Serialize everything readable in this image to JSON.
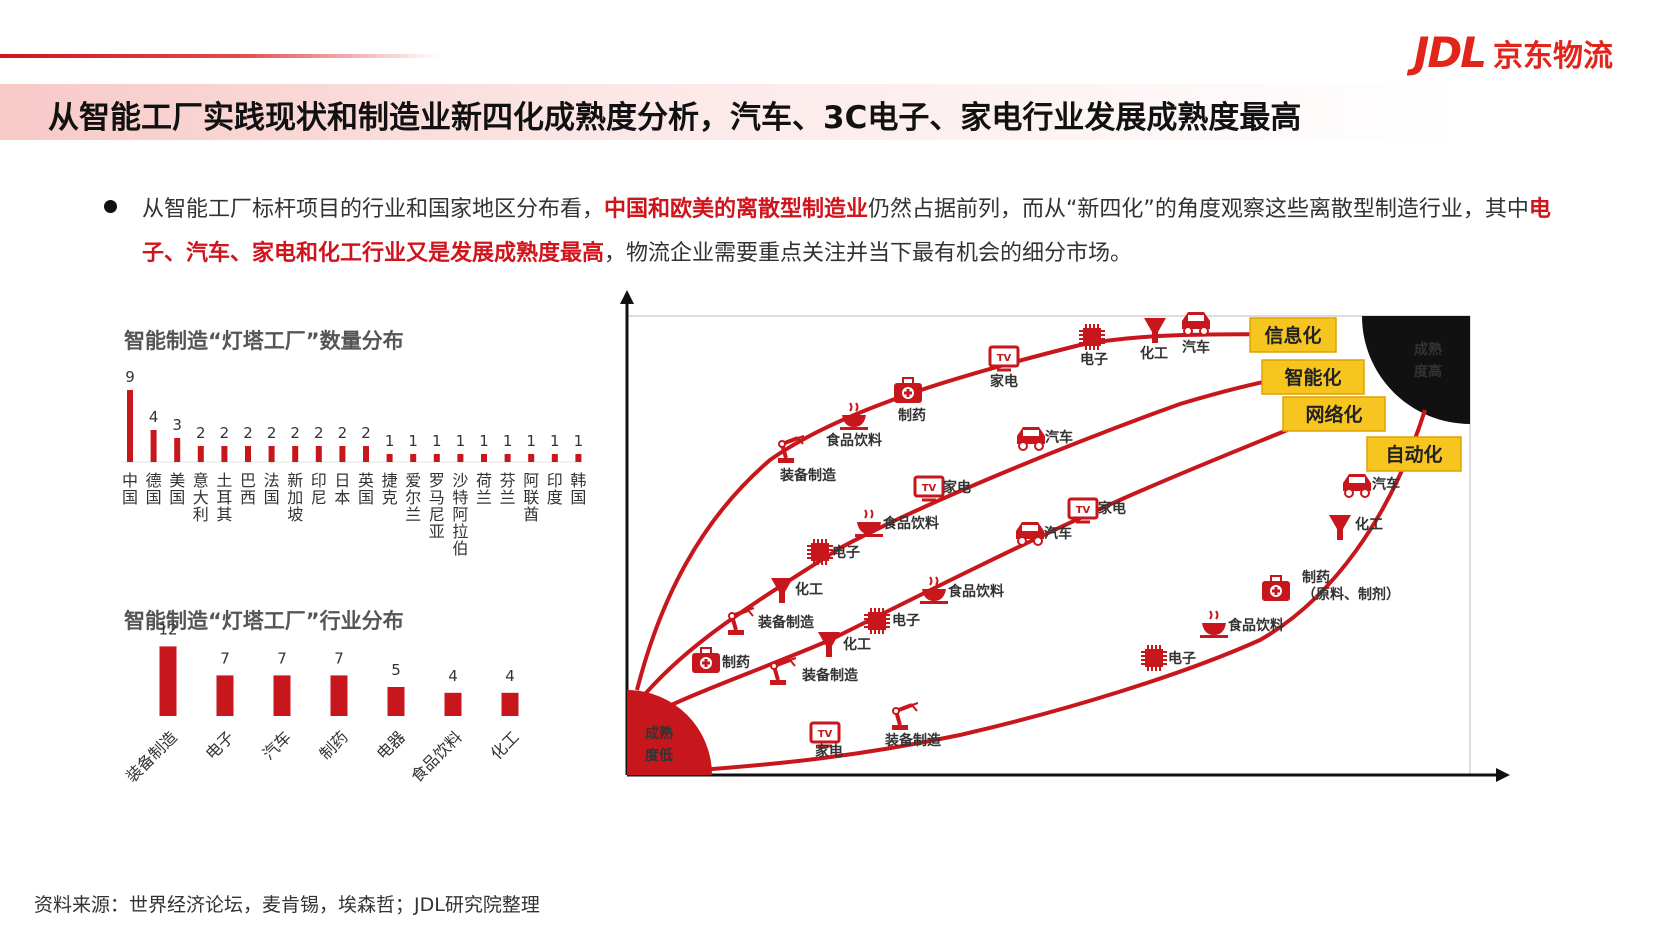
{
  "brand": {
    "mark": "JDL",
    "name": "京东物流",
    "accent": "#e1251b"
  },
  "title": "从智能工厂实践现状和制造业新四化成熟度分析，汽车、3C电子、家电行业发展成熟度最高",
  "bullet": {
    "p1": "从智能工厂标杆项目的行业和国家地区分布看，",
    "h1": "中国和欧美的离散型制造业",
    "p2": "仍然占据前列，而从“新四化”的角度观察这些离散型制造行业，其中",
    "h2": "电子、汽车、家电和化工",
    "h3": "行业又是发展成熟度最高",
    "p3": "，物流企业需要重点关注并当下最有机会的细分市场。"
  },
  "source": "资料来源：世界经济论坛，麦肯锡，埃森哲；JDL研究院整理",
  "chart_data": [
    {
      "type": "bar",
      "title": "智能制造“灯塔工厂”数量分布",
      "categories": [
        "中国",
        "德国",
        "美国",
        "意大利",
        "土耳其",
        "巴西",
        "法国",
        "新加坡",
        "印尼",
        "日本",
        "英国",
        "捷克",
        "爱尔兰",
        "罗马尼亚",
        "沙特阿拉伯",
        "荷兰",
        "芬兰",
        "阿联酋",
        "印度",
        "韩国"
      ],
      "values": [
        9,
        4,
        3,
        2,
        2,
        2,
        2,
        2,
        2,
        2,
        2,
        1,
        1,
        1,
        1,
        1,
        1,
        1,
        1,
        1
      ],
      "bar_color": "#c8161d"
    },
    {
      "type": "bar",
      "title": "智能制造“灯塔工厂”行业分布",
      "categories": [
        "装备制造",
        "电子",
        "汽车",
        "制药",
        "电器",
        "食品饮料",
        "化工"
      ],
      "values": [
        12,
        7,
        7,
        7,
        5,
        4,
        4
      ],
      "bar_color": "#c8161d"
    },
    {
      "type": "line",
      "corner_low": "成熟度低",
      "corner_high": "成熟度高",
      "line_color": "#c8161d",
      "series": [
        {
          "name": "信息化",
          "points": [
            {
              "label": "装备制造",
              "icon": "robot-arm-icon"
            },
            {
              "label": "食品饮料",
              "icon": "food-icon"
            },
            {
              "label": "制药",
              "icon": "medicine-icon"
            },
            {
              "label": "家电",
              "icon": "tv-icon"
            },
            {
              "label": "电子",
              "icon": "chip-icon"
            },
            {
              "label": "化工",
              "icon": "chemical-icon"
            },
            {
              "label": "汽车",
              "icon": "car-icon"
            }
          ]
        },
        {
          "name": "智能化",
          "points": [
            {
              "label": "装备制造",
              "icon": "robot-arm-icon"
            },
            {
              "label": "化工",
              "icon": "chemical-icon"
            },
            {
              "label": "电子",
              "icon": "chip-icon"
            },
            {
              "label": "食品饮料",
              "icon": "food-icon"
            },
            {
              "label": "家电",
              "icon": "tv-icon"
            },
            {
              "label": "汽车",
              "icon": "car-icon"
            }
          ]
        },
        {
          "name": "网络化",
          "points": [
            {
              "label": "制药",
              "icon": "medicine-icon"
            },
            {
              "label": "装备制造",
              "icon": "robot-arm-icon"
            },
            {
              "label": "化工",
              "icon": "chemical-icon"
            },
            {
              "label": "电子",
              "icon": "chip-icon"
            },
            {
              "label": "食品饮料",
              "icon": "food-icon"
            },
            {
              "label": "汽车",
              "icon": "car-icon"
            },
            {
              "label": "家电",
              "icon": "tv-icon"
            }
          ]
        },
        {
          "name": "自动化",
          "points": [
            {
              "label": "家电",
              "icon": "tv-icon"
            },
            {
              "label": "装备制造",
              "icon": "robot-arm-icon"
            },
            {
              "label": "电子",
              "icon": "chip-icon"
            },
            {
              "label": "食品饮料",
              "icon": "food-icon"
            },
            {
              "label": "制药",
              "icon": "medicine-icon",
              "note": "（原料、制剂）"
            },
            {
              "label": "化工",
              "icon": "chemical-icon"
            },
            {
              "label": "汽车",
              "icon": "car-icon"
            }
          ]
        }
      ]
    }
  ]
}
